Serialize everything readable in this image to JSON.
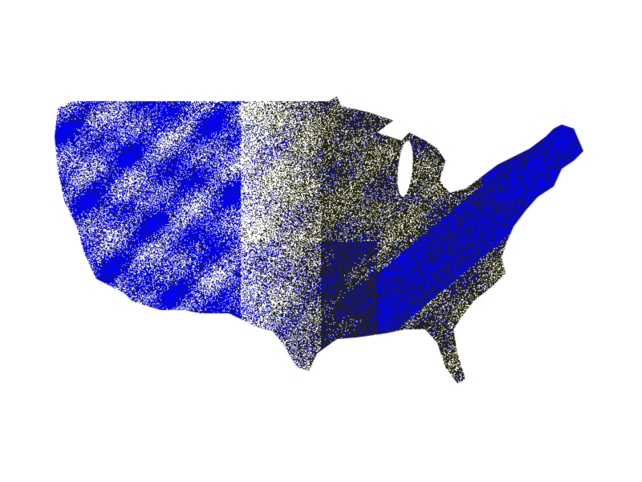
{
  "map": {
    "region": "contiguous-united-states",
    "style": "dot-density",
    "colors": {
      "background": "#ffffff",
      "dark": "#26260a",
      "blue": "#0000ff"
    }
  }
}
